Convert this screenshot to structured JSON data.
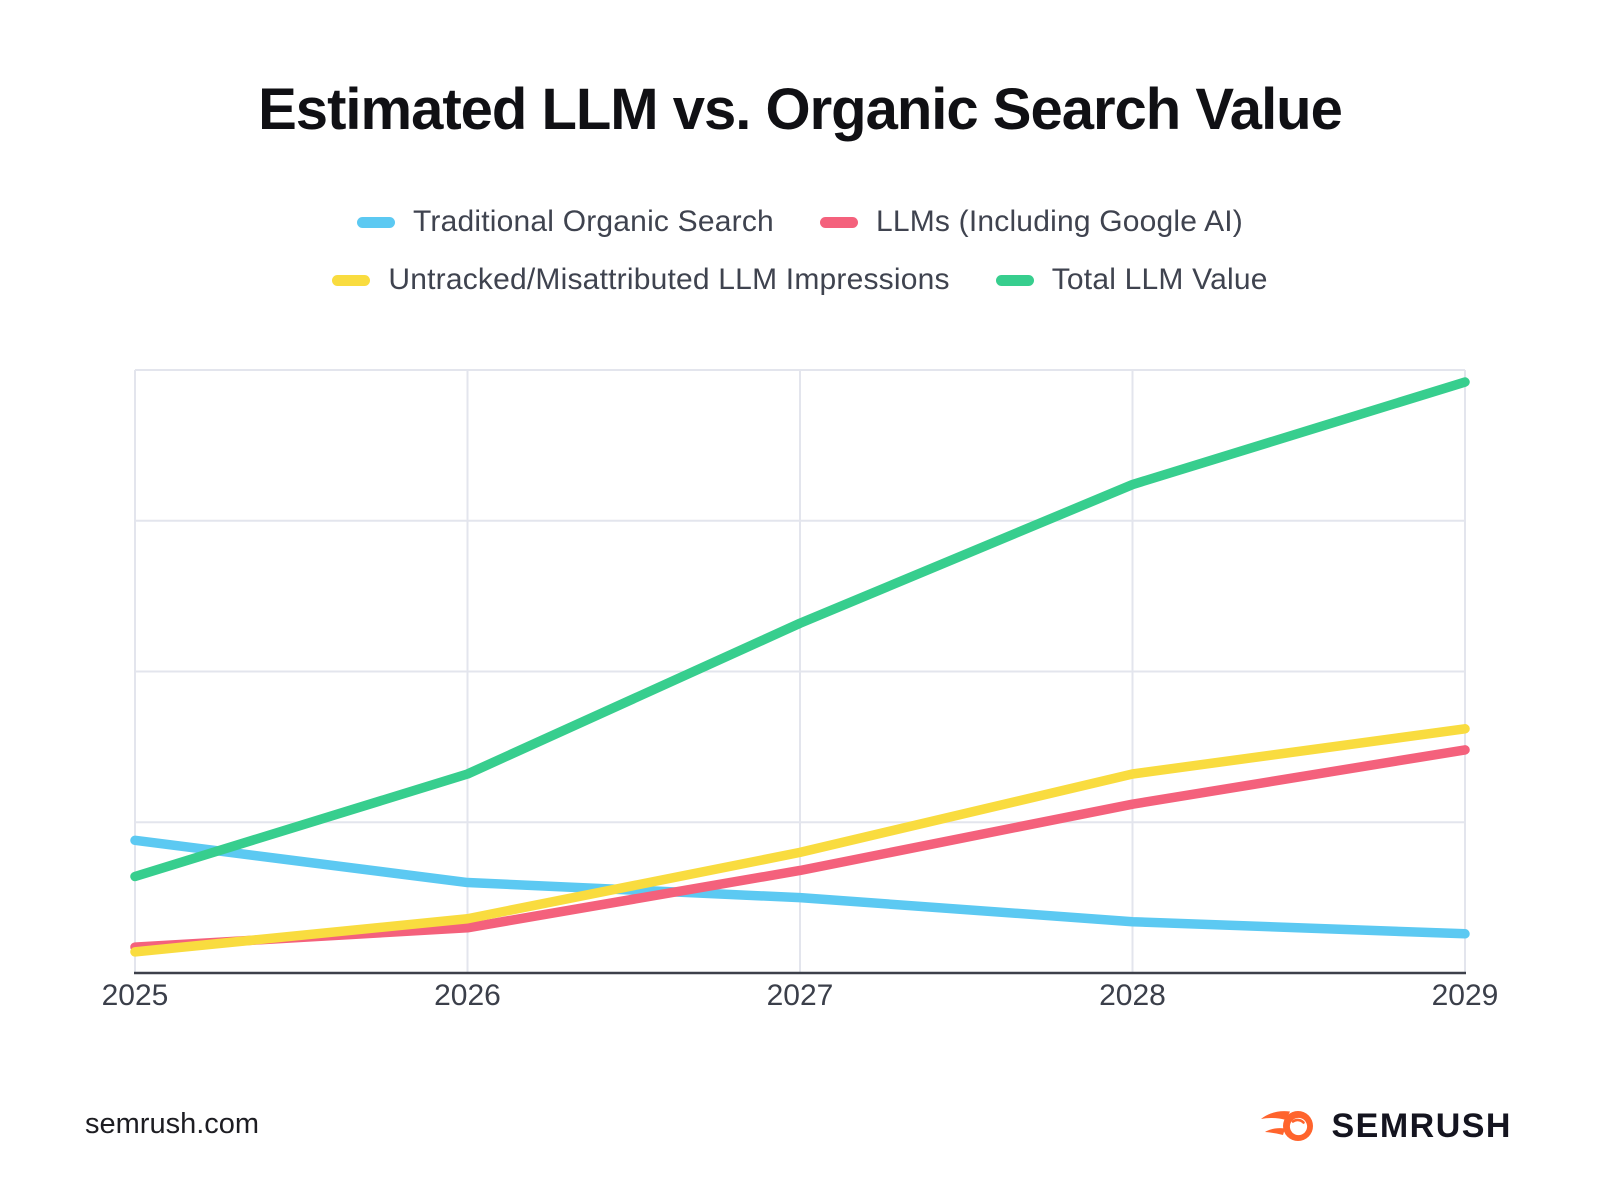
{
  "title": "Estimated LLM vs. Organic Search Value",
  "footer": {
    "website": "semrush.com",
    "brand": "SEMRUSH"
  },
  "colors": {
    "background": "#ffffff",
    "grid": "#e3e5ed",
    "axis": "#3d404a",
    "tick_label": "#3b3f4a",
    "legend_text": "#3f434f",
    "title_text": "#101014",
    "brand_orange": "#ff642d",
    "brand_text": "#14141f"
  },
  "chart_data": {
    "type": "line",
    "x": [
      "2025",
      "2026",
      "2027",
      "2028",
      "2029"
    ],
    "series": [
      {
        "name": "Traditional Organic Search",
        "color": "#5cc9f2",
        "values": [
          22,
          15,
          12.5,
          8.5,
          6.5
        ]
      },
      {
        "name": "LLMs (Including Google AI)",
        "color": "#f4617c",
        "values": [
          4.3,
          7.5,
          17,
          28,
          37
        ]
      },
      {
        "name": "Untracked/Misattributed LLM Impressions",
        "color": "#f9dc3f",
        "values": [
          3.5,
          9,
          20,
          33,
          40.5
        ]
      },
      {
        "name": "Total LLM Value",
        "color": "#37ce8e",
        "values": [
          16,
          33,
          58,
          81,
          98
        ]
      }
    ],
    "title": "Estimated LLM vs. Organic Search Value",
    "xlabel": "",
    "ylabel": "",
    "ylim": [
      0,
      100
    ],
    "y_tick_labels_visible": false,
    "grid": true,
    "legend_position": "top",
    "note": "Y-axis carries no tick labels in the source image; series values are estimated on a 0-100 scale where 100 equals the top plot border"
  }
}
